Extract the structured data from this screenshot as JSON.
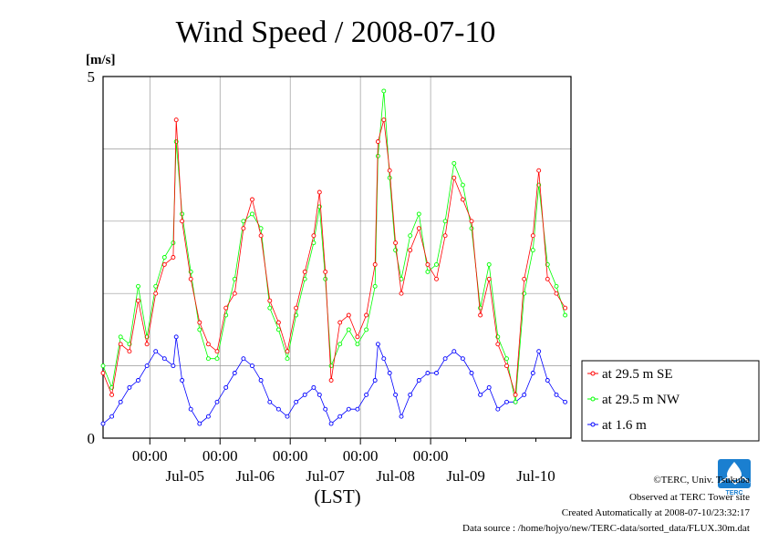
{
  "chart_data": {
    "type": "line",
    "title": "Wind Speed / 2008-07-10",
    "ylabel": "[m/s]",
    "xlabel": "(LST)",
    "ylim": [
      0,
      5
    ],
    "xlim": [
      "2008-07-04 08:00",
      "2008-07-11 00:00"
    ],
    "y_ticks": [
      "0",
      "5"
    ],
    "x_time_ticks": [
      {
        "at": "2008-07-05 00:00",
        "label": "00:00"
      },
      {
        "at": "2008-07-06 00:00",
        "label": "00:00"
      },
      {
        "at": "2008-07-07 00:00",
        "label": "00:00"
      },
      {
        "at": "2008-07-08 00:00",
        "label": "00:00"
      },
      {
        "at": "2008-07-09 00:00",
        "label": "00:00"
      }
    ],
    "x_day_ticks": [
      {
        "at": "2008-07-05 12:00",
        "label": "Jul-05"
      },
      {
        "at": "2008-07-06 12:00",
        "label": "Jul-06"
      },
      {
        "at": "2008-07-07 12:00",
        "label": "Jul-07"
      },
      {
        "at": "2008-07-08 12:00",
        "label": "Jul-08"
      },
      {
        "at": "2008-07-09 12:00",
        "label": "Jul-09"
      },
      {
        "at": "2008-07-10 12:00",
        "label": "Jul-10"
      }
    ],
    "grid": true,
    "legend_position": "right",
    "series": [
      {
        "name": "at 29.5 m SE",
        "color": "#ff0000",
        "points": [
          [
            "2008-07-04 08:00",
            0.9
          ],
          [
            "2008-07-04 11:00",
            0.6
          ],
          [
            "2008-07-04 14:00",
            1.3
          ],
          [
            "2008-07-04 17:00",
            1.2
          ],
          [
            "2008-07-04 20:00",
            1.9
          ],
          [
            "2008-07-04 23:00",
            1.3
          ],
          [
            "2008-07-05 02:00",
            2.0
          ],
          [
            "2008-07-05 05:00",
            2.4
          ],
          [
            "2008-07-05 08:00",
            2.5
          ],
          [
            "2008-07-05 09:00",
            4.4
          ],
          [
            "2008-07-05 11:00",
            3.0
          ],
          [
            "2008-07-05 14:00",
            2.2
          ],
          [
            "2008-07-05 17:00",
            1.6
          ],
          [
            "2008-07-05 20:00",
            1.3
          ],
          [
            "2008-07-05 23:00",
            1.2
          ],
          [
            "2008-07-06 02:00",
            1.8
          ],
          [
            "2008-07-06 05:00",
            2.0
          ],
          [
            "2008-07-06 08:00",
            2.9
          ],
          [
            "2008-07-06 11:00",
            3.3
          ],
          [
            "2008-07-06 14:00",
            2.8
          ],
          [
            "2008-07-06 17:00",
            1.9
          ],
          [
            "2008-07-06 20:00",
            1.6
          ],
          [
            "2008-07-06 23:00",
            1.2
          ],
          [
            "2008-07-07 02:00",
            1.8
          ],
          [
            "2008-07-07 05:00",
            2.3
          ],
          [
            "2008-07-07 08:00",
            2.8
          ],
          [
            "2008-07-07 10:00",
            3.4
          ],
          [
            "2008-07-07 12:00",
            2.3
          ],
          [
            "2008-07-07 14:00",
            0.8
          ],
          [
            "2008-07-07 17:00",
            1.6
          ],
          [
            "2008-07-07 20:00",
            1.7
          ],
          [
            "2008-07-07 23:00",
            1.4
          ],
          [
            "2008-07-08 02:00",
            1.7
          ],
          [
            "2008-07-08 05:00",
            2.4
          ],
          [
            "2008-07-08 06:00",
            4.1
          ],
          [
            "2008-07-08 08:00",
            4.4
          ],
          [
            "2008-07-08 10:00",
            3.7
          ],
          [
            "2008-07-08 12:00",
            2.7
          ],
          [
            "2008-07-08 14:00",
            2.0
          ],
          [
            "2008-07-08 17:00",
            2.6
          ],
          [
            "2008-07-08 20:00",
            2.9
          ],
          [
            "2008-07-08 23:00",
            2.4
          ],
          [
            "2008-07-09 02:00",
            2.2
          ],
          [
            "2008-07-09 05:00",
            2.8
          ],
          [
            "2008-07-09 08:00",
            3.6
          ],
          [
            "2008-07-09 11:00",
            3.3
          ],
          [
            "2008-07-09 14:00",
            3.0
          ],
          [
            "2008-07-09 17:00",
            1.7
          ],
          [
            "2008-07-09 20:00",
            2.2
          ],
          [
            "2008-07-09 23:00",
            1.3
          ],
          [
            "2008-07-10 02:00",
            1.0
          ],
          [
            "2008-07-10 05:00",
            0.6
          ],
          [
            "2008-07-10 08:00",
            2.2
          ],
          [
            "2008-07-10 11:00",
            2.8
          ],
          [
            "2008-07-10 13:00",
            3.7
          ],
          [
            "2008-07-10 16:00",
            2.2
          ],
          [
            "2008-07-10 19:00",
            2.0
          ],
          [
            "2008-07-10 22:00",
            1.8
          ]
        ]
      },
      {
        "name": "at 29.5 m NW",
        "color": "#00ff00",
        "points": [
          [
            "2008-07-04 08:00",
            1.0
          ],
          [
            "2008-07-04 11:00",
            0.7
          ],
          [
            "2008-07-04 14:00",
            1.4
          ],
          [
            "2008-07-04 17:00",
            1.3
          ],
          [
            "2008-07-04 20:00",
            2.1
          ],
          [
            "2008-07-04 23:00",
            1.4
          ],
          [
            "2008-07-05 02:00",
            2.1
          ],
          [
            "2008-07-05 05:00",
            2.5
          ],
          [
            "2008-07-05 08:00",
            2.7
          ],
          [
            "2008-07-05 09:00",
            4.1
          ],
          [
            "2008-07-05 11:00",
            3.1
          ],
          [
            "2008-07-05 14:00",
            2.3
          ],
          [
            "2008-07-05 17:00",
            1.5
          ],
          [
            "2008-07-05 20:00",
            1.1
          ],
          [
            "2008-07-05 23:00",
            1.1
          ],
          [
            "2008-07-06 02:00",
            1.7
          ],
          [
            "2008-07-06 05:00",
            2.2
          ],
          [
            "2008-07-06 08:00",
            3.0
          ],
          [
            "2008-07-06 11:00",
            3.1
          ],
          [
            "2008-07-06 14:00",
            2.9
          ],
          [
            "2008-07-06 17:00",
            1.8
          ],
          [
            "2008-07-06 20:00",
            1.5
          ],
          [
            "2008-07-06 23:00",
            1.1
          ],
          [
            "2008-07-07 02:00",
            1.7
          ],
          [
            "2008-07-07 05:00",
            2.2
          ],
          [
            "2008-07-07 08:00",
            2.7
          ],
          [
            "2008-07-07 10:00",
            3.2
          ],
          [
            "2008-07-07 12:00",
            2.2
          ],
          [
            "2008-07-07 14:00",
            1.0
          ],
          [
            "2008-07-07 17:00",
            1.3
          ],
          [
            "2008-07-07 20:00",
            1.5
          ],
          [
            "2008-07-07 23:00",
            1.3
          ],
          [
            "2008-07-08 02:00",
            1.5
          ],
          [
            "2008-07-08 05:00",
            2.1
          ],
          [
            "2008-07-08 06:00",
            3.9
          ],
          [
            "2008-07-08 08:00",
            4.8
          ],
          [
            "2008-07-08 10:00",
            3.6
          ],
          [
            "2008-07-08 12:00",
            2.6
          ],
          [
            "2008-07-08 14:00",
            2.2
          ],
          [
            "2008-07-08 17:00",
            2.8
          ],
          [
            "2008-07-08 20:00",
            3.1
          ],
          [
            "2008-07-08 23:00",
            2.3
          ],
          [
            "2008-07-09 02:00",
            2.4
          ],
          [
            "2008-07-09 05:00",
            3.0
          ],
          [
            "2008-07-09 08:00",
            3.8
          ],
          [
            "2008-07-09 11:00",
            3.5
          ],
          [
            "2008-07-09 14:00",
            2.9
          ],
          [
            "2008-07-09 17:00",
            1.8
          ],
          [
            "2008-07-09 20:00",
            2.4
          ],
          [
            "2008-07-09 23:00",
            1.4
          ],
          [
            "2008-07-10 02:00",
            1.1
          ],
          [
            "2008-07-10 05:00",
            0.5
          ],
          [
            "2008-07-10 08:00",
            2.0
          ],
          [
            "2008-07-10 11:00",
            2.6
          ],
          [
            "2008-07-10 13:00",
            3.5
          ],
          [
            "2008-07-10 16:00",
            2.4
          ],
          [
            "2008-07-10 19:00",
            2.1
          ],
          [
            "2008-07-10 22:00",
            1.7
          ]
        ]
      },
      {
        "name": "at 1.6 m",
        "color": "#0000ff",
        "points": [
          [
            "2008-07-04 08:00",
            0.2
          ],
          [
            "2008-07-04 11:00",
            0.3
          ],
          [
            "2008-07-04 14:00",
            0.5
          ],
          [
            "2008-07-04 17:00",
            0.7
          ],
          [
            "2008-07-04 20:00",
            0.8
          ],
          [
            "2008-07-04 23:00",
            1.0
          ],
          [
            "2008-07-05 02:00",
            1.2
          ],
          [
            "2008-07-05 05:00",
            1.1
          ],
          [
            "2008-07-05 08:00",
            1.0
          ],
          [
            "2008-07-05 09:00",
            1.4
          ],
          [
            "2008-07-05 11:00",
            0.8
          ],
          [
            "2008-07-05 14:00",
            0.4
          ],
          [
            "2008-07-05 17:00",
            0.2
          ],
          [
            "2008-07-05 20:00",
            0.3
          ],
          [
            "2008-07-05 23:00",
            0.5
          ],
          [
            "2008-07-06 02:00",
            0.7
          ],
          [
            "2008-07-06 05:00",
            0.9
          ],
          [
            "2008-07-06 08:00",
            1.1
          ],
          [
            "2008-07-06 11:00",
            1.0
          ],
          [
            "2008-07-06 14:00",
            0.8
          ],
          [
            "2008-07-06 17:00",
            0.5
          ],
          [
            "2008-07-06 20:00",
            0.4
          ],
          [
            "2008-07-06 23:00",
            0.3
          ],
          [
            "2008-07-07 02:00",
            0.5
          ],
          [
            "2008-07-07 05:00",
            0.6
          ],
          [
            "2008-07-07 08:00",
            0.7
          ],
          [
            "2008-07-07 10:00",
            0.6
          ],
          [
            "2008-07-07 12:00",
            0.4
          ],
          [
            "2008-07-07 14:00",
            0.2
          ],
          [
            "2008-07-07 17:00",
            0.3
          ],
          [
            "2008-07-07 20:00",
            0.4
          ],
          [
            "2008-07-07 23:00",
            0.4
          ],
          [
            "2008-07-08 02:00",
            0.6
          ],
          [
            "2008-07-08 05:00",
            0.8
          ],
          [
            "2008-07-08 06:00",
            1.3
          ],
          [
            "2008-07-08 08:00",
            1.1
          ],
          [
            "2008-07-08 10:00",
            0.9
          ],
          [
            "2008-07-08 12:00",
            0.6
          ],
          [
            "2008-07-08 14:00",
            0.3
          ],
          [
            "2008-07-08 17:00",
            0.6
          ],
          [
            "2008-07-08 20:00",
            0.8
          ],
          [
            "2008-07-08 23:00",
            0.9
          ],
          [
            "2008-07-09 02:00",
            0.9
          ],
          [
            "2008-07-09 05:00",
            1.1
          ],
          [
            "2008-07-09 08:00",
            1.2
          ],
          [
            "2008-07-09 11:00",
            1.1
          ],
          [
            "2008-07-09 14:00",
            0.9
          ],
          [
            "2008-07-09 17:00",
            0.6
          ],
          [
            "2008-07-09 20:00",
            0.7
          ],
          [
            "2008-07-09 23:00",
            0.4
          ],
          [
            "2008-07-10 02:00",
            0.5
          ],
          [
            "2008-07-10 05:00",
            0.5
          ],
          [
            "2008-07-10 08:00",
            0.6
          ],
          [
            "2008-07-10 11:00",
            0.9
          ],
          [
            "2008-07-10 13:00",
            1.2
          ],
          [
            "2008-07-10 16:00",
            0.8
          ],
          [
            "2008-07-10 19:00",
            0.6
          ],
          [
            "2008-07-10 22:00",
            0.5
          ]
        ]
      }
    ]
  },
  "footer": {
    "copyright": "©TERC, Univ. Tsukuba",
    "observed": "Observed at TERC Tower site",
    "created": "Created Automatically at 2008-07-10/23:32:17",
    "source": "Data source : /home/hojyo/new/TERC-data/sorted_data/FLUX.30m.dat"
  },
  "logo": {
    "text": "TERC",
    "color": "#1a7fd0"
  }
}
